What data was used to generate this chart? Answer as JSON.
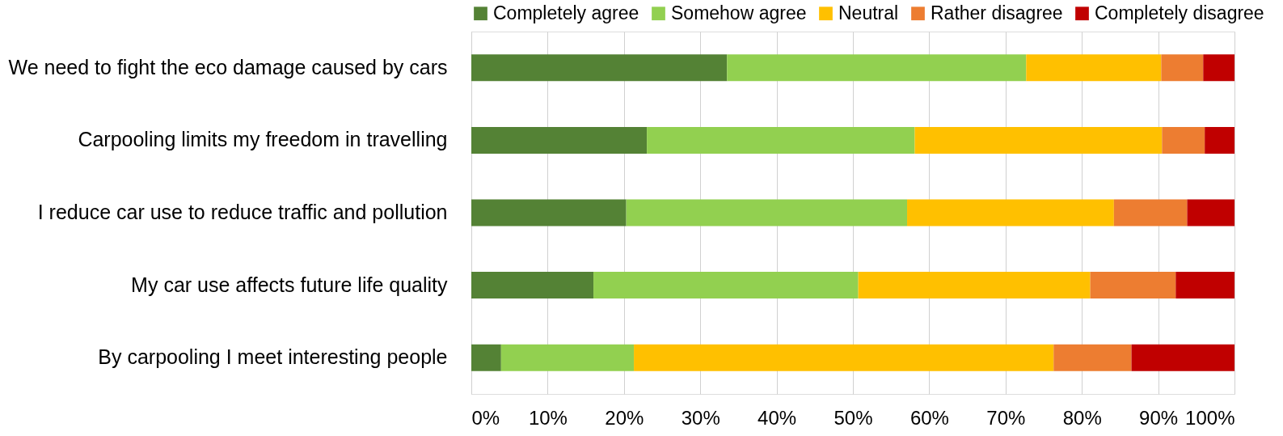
{
  "chart_data": {
    "type": "bar",
    "orientation": "horizontal",
    "stacked": true,
    "categories": [
      "We need to fight the eco damage caused by cars",
      "Carpooling limits my freedom in travelling",
      "I reduce car use to reduce traffic and pollution",
      "My car use affects future life quality",
      "By carpooling I meet interesting people"
    ],
    "series": [
      {
        "name": "Completely agree",
        "color": "#548235",
        "values": [
          33.5,
          23.0,
          20.3,
          16.0,
          3.9
        ]
      },
      {
        "name": "Somehow agree",
        "color": "#92d050",
        "values": [
          39.2,
          35.1,
          36.8,
          34.7,
          17.4
        ]
      },
      {
        "name": "Neutral",
        "color": "#ffc000",
        "values": [
          17.7,
          32.4,
          27.1,
          30.4,
          55.0
        ]
      },
      {
        "name": "Rather disagree",
        "color": "#ed7d31",
        "values": [
          5.5,
          5.6,
          9.6,
          11.2,
          10.2
        ]
      },
      {
        "name": "Completely disagree",
        "color": "#c00000",
        "values": [
          4.1,
          3.9,
          6.2,
          7.7,
          13.5
        ]
      }
    ],
    "xlim": [
      0,
      100
    ],
    "xticks": [
      {
        "value": 0,
        "label": "0%"
      },
      {
        "value": 10,
        "label": "10%"
      },
      {
        "value": 20,
        "label": "20%"
      },
      {
        "value": 30,
        "label": "30%"
      },
      {
        "value": 40,
        "label": "40%"
      },
      {
        "value": 50,
        "label": "50%"
      },
      {
        "value": 60,
        "label": "60%"
      },
      {
        "value": 70,
        "label": "70%"
      },
      {
        "value": 80,
        "label": "80%"
      },
      {
        "value": 90,
        "label": "90%"
      },
      {
        "value": 100,
        "label": "100%"
      }
    ],
    "grid": "x",
    "legend": "top"
  }
}
